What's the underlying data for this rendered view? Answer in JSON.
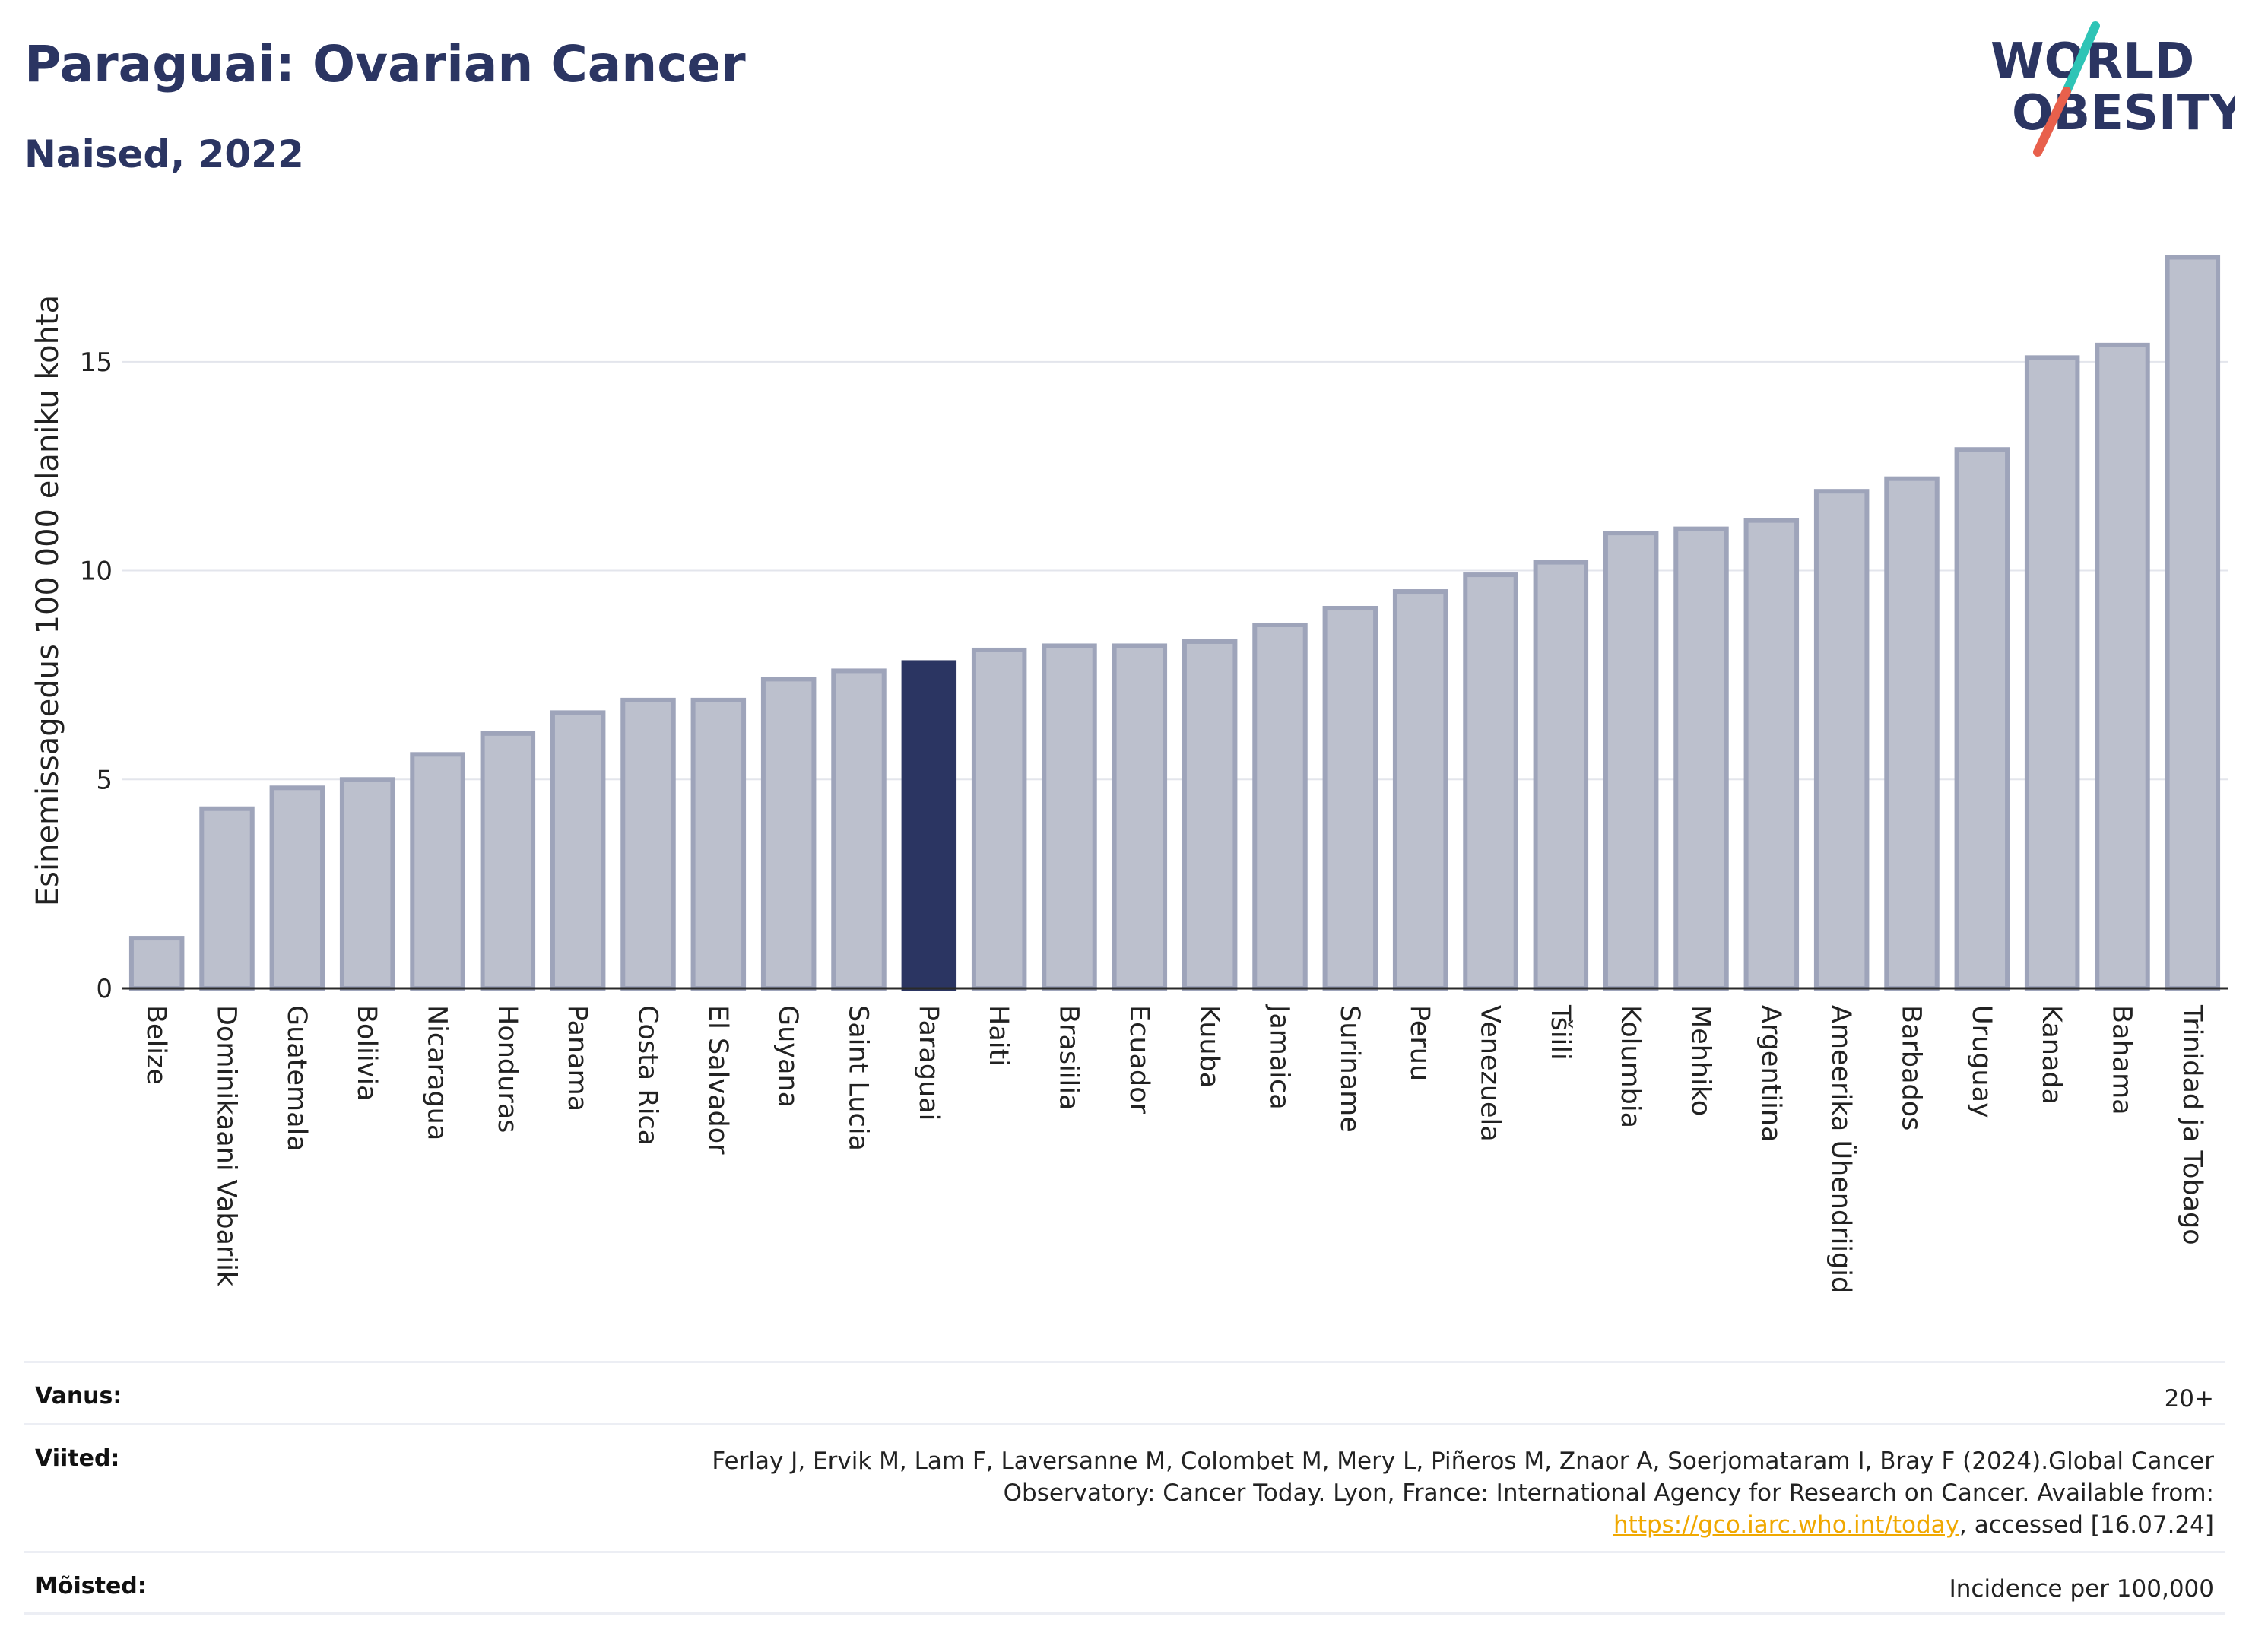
{
  "header": {
    "title": "Paraguai: Ovarian Cancer",
    "subtitle": "Naised, 2022"
  },
  "logo": {
    "line1": "WORLD",
    "line2": "OBESITY",
    "colors": {
      "text": "#2b3562",
      "slash_top": "#2ec4b6",
      "slash_bottom": "#e8604c"
    }
  },
  "chart_data": {
    "type": "bar",
    "title": "Paraguai: Ovarian Cancer",
    "subtitle": "Naised, 2022",
    "xlabel": "",
    "ylabel": "Esinemissagedus 100 000 elaniku kohta",
    "ylim": [
      0,
      17.8
    ],
    "yticks": [
      0,
      5,
      10,
      15
    ],
    "grid": true,
    "highlight": "Paraguai",
    "colors": {
      "bar": "#bcc0cd",
      "bar_border": "#9ea4ba",
      "highlight": "#2b3562"
    },
    "categories": [
      "Belize",
      "Dominikaani Vabariik",
      "Guatemala",
      "Boliivia",
      "Nicaragua",
      "Honduras",
      "Panama",
      "Costa Rica",
      "El Salvador",
      "Guyana",
      "Saint Lucia",
      "Paraguai",
      "Haiti",
      "Brasiilia",
      "Ecuador",
      "Kuuba",
      "Jamaica",
      "Suriname",
      "Peruu",
      "Venezuela",
      "Tšiili",
      "Kolumbia",
      "Mehhiko",
      "Argentiina",
      "Ameerika Ühendriigid",
      "Barbados",
      "Uruguay",
      "Kanada",
      "Bahama",
      "Trinidad ja Tobago"
    ],
    "values": [
      1.2,
      4.3,
      4.8,
      5.0,
      5.6,
      6.1,
      6.6,
      6.9,
      6.9,
      7.4,
      7.6,
      7.8,
      8.1,
      8.2,
      8.2,
      8.3,
      8.7,
      9.1,
      9.5,
      9.9,
      10.2,
      10.9,
      11.0,
      11.2,
      11.9,
      12.2,
      12.9,
      15.1,
      15.4,
      17.5
    ]
  },
  "info": {
    "age_label": "Vanus:",
    "age_value": "20+",
    "ref_label": "Viited:",
    "ref_text_1": "Ferlay J, Ervik M, Lam F, Laversanne M, Colombet M, Mery L, Piñeros M, Znaor A, Soerjomataram I, Bray F (2024).Global Cancer Observatory: Cancer Today. Lyon, France: International Agency for Research on Cancer. Available from: ",
    "ref_link": "https://gco.iarc.who.int/today",
    "ref_text_2": ", accessed [16.07.24]",
    "def_label": "Mõisted:",
    "def_value": "Incidence per 100,000"
  }
}
